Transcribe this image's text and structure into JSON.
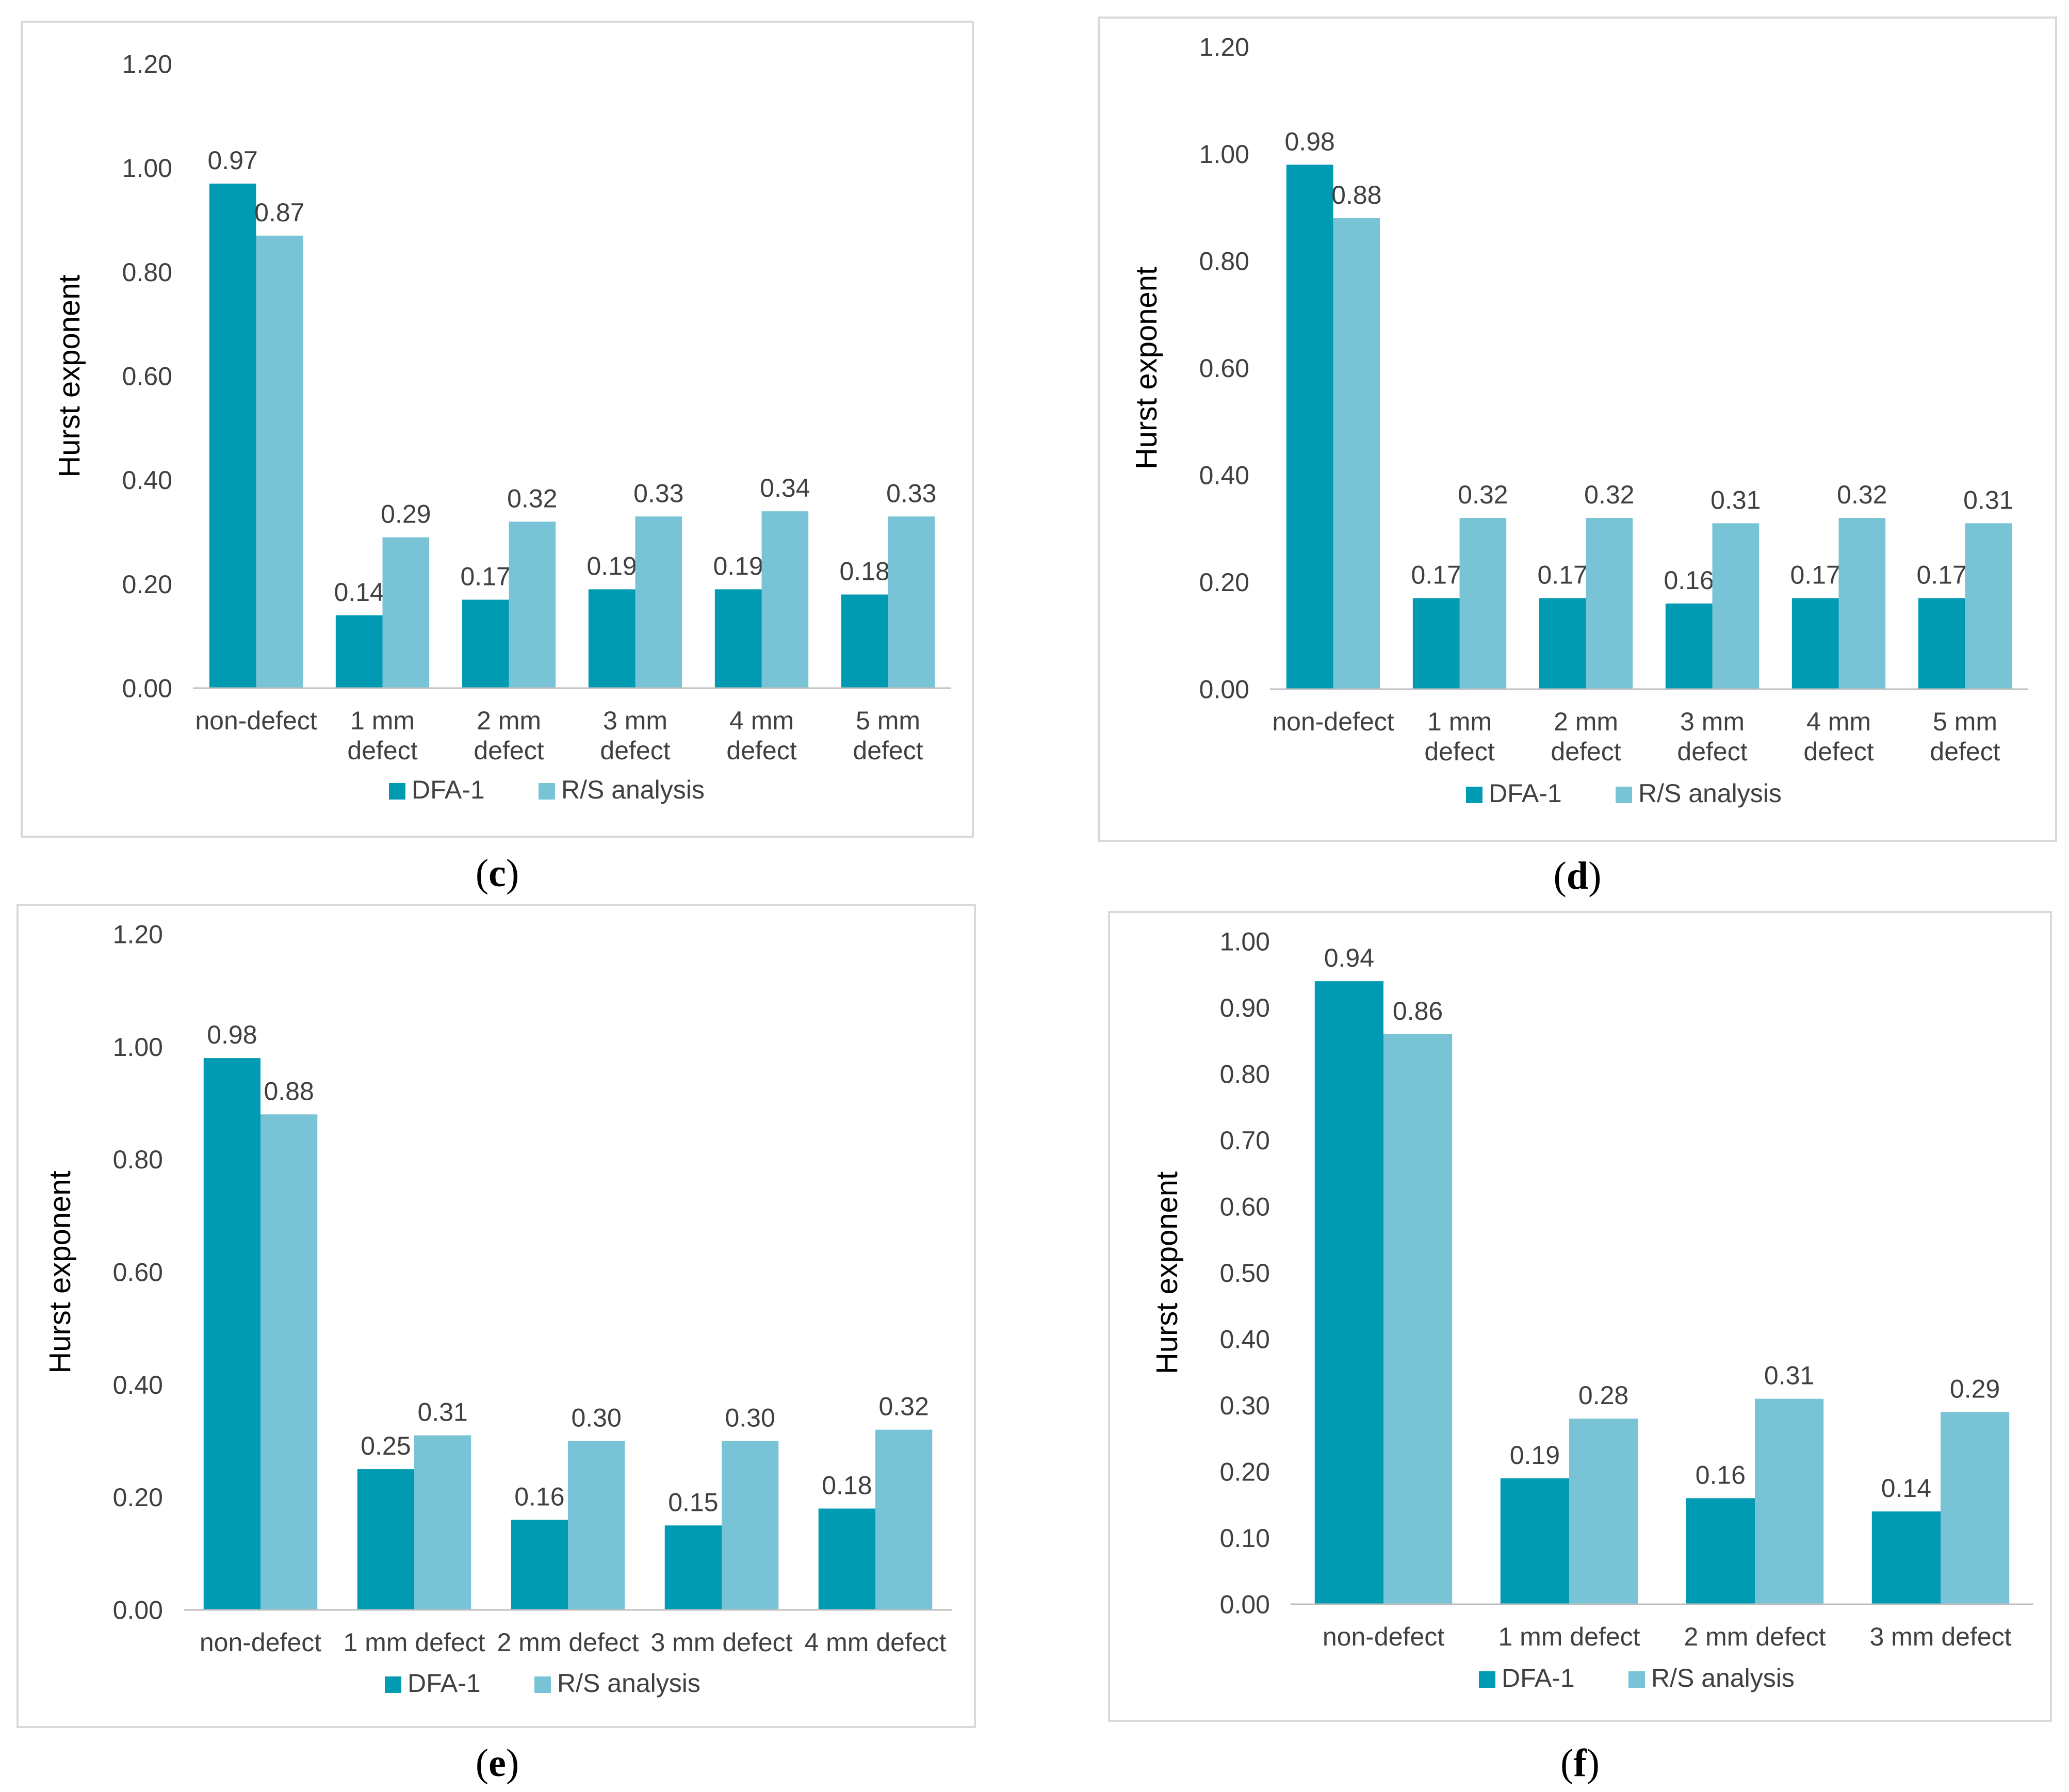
{
  "colors": {
    "dfa": "#009ab2",
    "rs": "#78c3d6",
    "gridline": "#d9d9d9",
    "axis": "#bfbfbf",
    "text": "#404040"
  },
  "chart_data": [
    {
      "type": "bar",
      "panel": "c",
      "ylabel": "Hurst exponent",
      "ylim": [
        0,
        1.2
      ],
      "yticks": [
        "0.00",
        "0.20",
        "0.40",
        "0.60",
        "0.80",
        "1.00",
        "1.20"
      ],
      "categories": [
        [
          "non-defect"
        ],
        [
          "1 mm",
          "defect"
        ],
        [
          "2 mm",
          "defect"
        ],
        [
          "3 mm",
          "defect"
        ],
        [
          "4 mm",
          "defect"
        ],
        [
          "5 mm",
          "defect"
        ]
      ],
      "series": [
        {
          "name": "DFA-1",
          "values": [
            0.97,
            0.14,
            0.17,
            0.19,
            0.19,
            0.18
          ],
          "labels": [
            "0.97",
            "0.14",
            "0.17",
            "0.19",
            "0.19",
            "0.18"
          ]
        },
        {
          "name": "R/S analysis",
          "values": [
            0.87,
            0.29,
            0.32,
            0.33,
            0.34,
            0.33
          ],
          "labels": [
            "0.87",
            "0.29",
            "0.32",
            "0.33",
            "0.34",
            "0.33"
          ]
        }
      ],
      "legend": "bottom",
      "grid": false
    },
    {
      "type": "bar",
      "panel": "d",
      "ylabel": "Hurst exponent",
      "ylim": [
        0,
        1.2
      ],
      "yticks": [
        "0.00",
        "0.20",
        "0.40",
        "0.60",
        "0.80",
        "1.00",
        "1.20"
      ],
      "categories": [
        [
          "non-defect"
        ],
        [
          "1 mm",
          "defect"
        ],
        [
          "2 mm",
          "defect"
        ],
        [
          "3 mm",
          "defect"
        ],
        [
          "4 mm",
          "defect"
        ],
        [
          "5 mm",
          "defect"
        ]
      ],
      "series": [
        {
          "name": "DFA-1",
          "values": [
            0.98,
            0.17,
            0.17,
            0.16,
            0.17,
            0.17
          ],
          "labels": [
            "0.98",
            "0.17",
            "0.17",
            "0.16",
            "0.17",
            "0.17"
          ]
        },
        {
          "name": "R/S analysis",
          "values": [
            0.88,
            0.32,
            0.32,
            0.31,
            0.32,
            0.31
          ],
          "labels": [
            "0.88",
            "0.32",
            "0.32",
            "0.31",
            "0.32",
            "0.31"
          ]
        }
      ],
      "legend": "bottom",
      "grid": false
    },
    {
      "type": "bar",
      "panel": "e",
      "ylabel": "Hurst exponent",
      "ylim": [
        0,
        1.2
      ],
      "yticks": [
        "0.00",
        "0.20",
        "0.40",
        "0.60",
        "0.80",
        "1.00",
        "1.20"
      ],
      "categories": [
        [
          "non-defect"
        ],
        [
          "1 mm defect"
        ],
        [
          "2 mm defect"
        ],
        [
          "3 mm defect"
        ],
        [
          "4 mm defect"
        ]
      ],
      "series": [
        {
          "name": "DFA-1",
          "values": [
            0.98,
            0.25,
            0.16,
            0.15,
            0.18
          ],
          "labels": [
            "0.98",
            "0.25",
            "0.16",
            "0.15",
            "0.18"
          ]
        },
        {
          "name": "R/S analysis",
          "values": [
            0.88,
            0.31,
            0.3,
            0.3,
            0.32
          ],
          "labels": [
            "0.88",
            "0.31",
            "0.30",
            "0.30",
            "0.32"
          ]
        }
      ],
      "legend": "bottom",
      "grid": false
    },
    {
      "type": "bar",
      "panel": "f",
      "ylabel": "Hurst exponent",
      "ylim": [
        0,
        1.0
      ],
      "yticks": [
        "0.00",
        "0.10",
        "0.20",
        "0.30",
        "0.40",
        "0.50",
        "0.60",
        "0.70",
        "0.80",
        "0.90",
        "1.00"
      ],
      "categories": [
        [
          "non-defect"
        ],
        [
          "1 mm defect"
        ],
        [
          "2 mm defect"
        ],
        [
          "3 mm defect"
        ]
      ],
      "series": [
        {
          "name": "DFA-1",
          "values": [
            0.94,
            0.19,
            0.16,
            0.14
          ],
          "labels": [
            "0.94",
            "0.19",
            "0.16",
            "0.14"
          ]
        },
        {
          "name": "R/S analysis",
          "values": [
            0.86,
            0.28,
            0.31,
            0.29
          ],
          "labels": [
            "0.86",
            "0.28",
            "0.31",
            "0.29"
          ]
        }
      ],
      "legend": "bottom",
      "grid": false
    }
  ],
  "captions": {
    "c": {
      "open": "(",
      "letter": "c",
      "close": ")"
    },
    "d": {
      "open": "(",
      "letter": "d",
      "close": ")"
    },
    "e": {
      "open": "(",
      "letter": "e",
      "close": ")"
    },
    "f": {
      "open": "(",
      "letter": "f",
      "close": ")"
    }
  }
}
